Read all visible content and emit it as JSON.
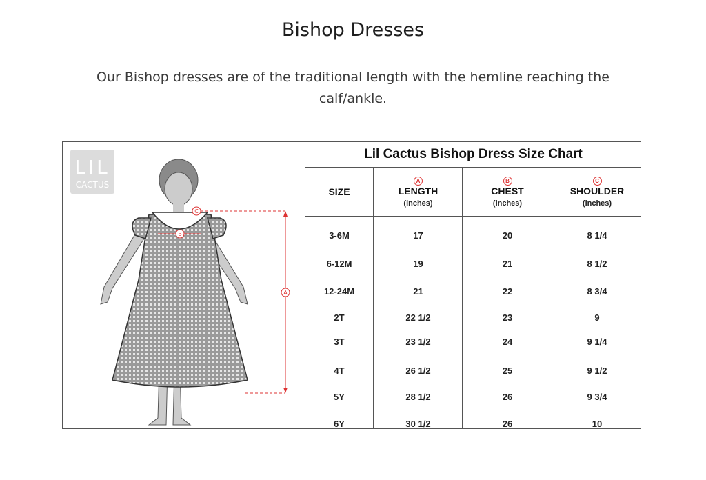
{
  "page": {
    "title": "Bishop Dresses",
    "description": "Our Bishop dresses are of the traditional length with the hemline reaching the calf/ankle."
  },
  "size_chart": {
    "logo_text": [
      "LIL",
      "CACTUS"
    ],
    "title": "Lil Cactus Bishop Dress Size Chart",
    "diagram_markers": [
      "A",
      "B",
      "C"
    ],
    "columns": [
      {
        "label": "SIZE",
        "marker": "",
        "unit": ""
      },
      {
        "label": "LENGTH",
        "marker": "A",
        "unit": "(inches)"
      },
      {
        "label": "CHEST",
        "marker": "B",
        "unit": "(inches)"
      },
      {
        "label": "SHOULDER",
        "marker": "C",
        "unit": "(inches)"
      }
    ],
    "rows": [
      [
        "3-6M",
        "17",
        "20",
        "8 1/4"
      ],
      [
        "6-12M",
        "19",
        "21",
        "8 1/2"
      ],
      [
        "12-24M",
        "21",
        "22",
        "8 3/4"
      ],
      [
        "2T",
        "22 1/2",
        "23",
        "9"
      ],
      [
        "3T",
        "23 1/2",
        "24",
        "9 1/4"
      ],
      [
        "4T",
        "26 1/2",
        "25",
        "9 1/2"
      ],
      [
        "5Y",
        "28 1/2",
        "26",
        "9 3/4"
      ],
      [
        "6Y",
        "30 1/2",
        "26",
        "10"
      ]
    ],
    "accent_color": "#d33333"
  }
}
